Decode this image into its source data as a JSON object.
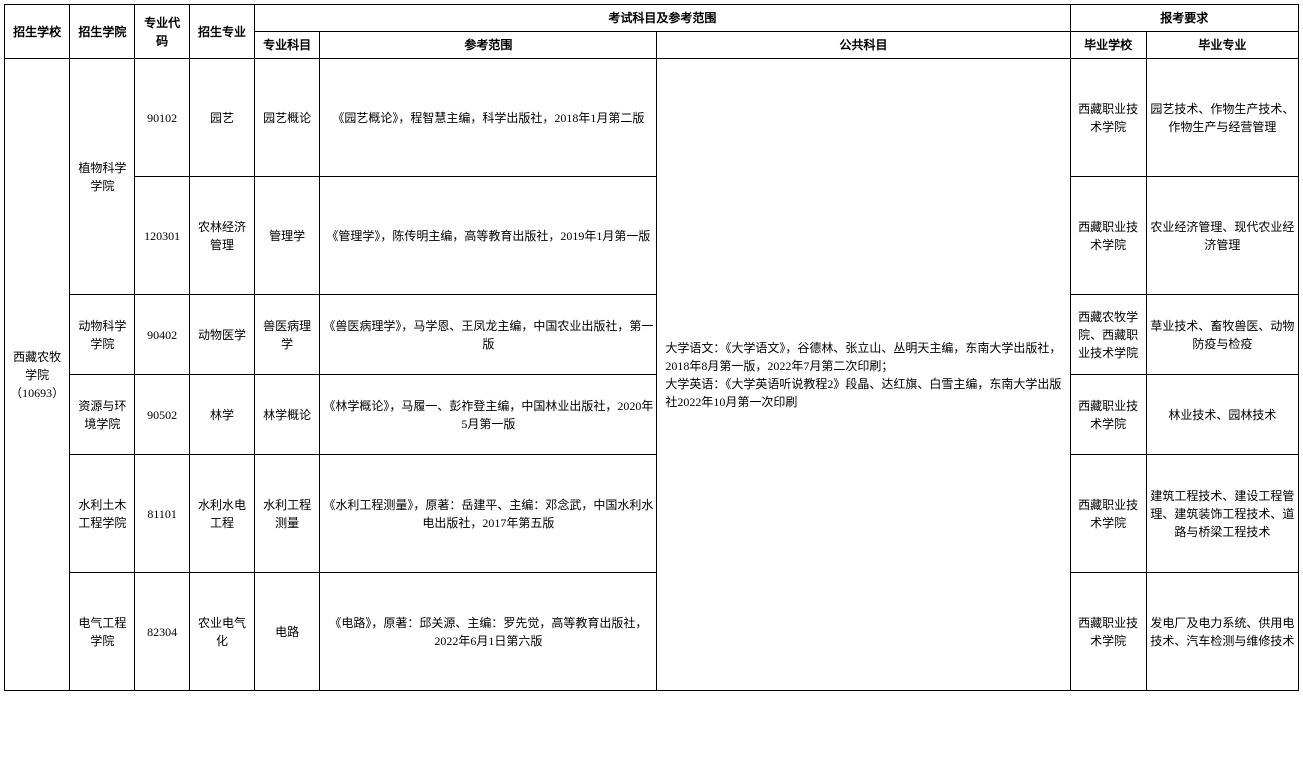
{
  "headers": {
    "school": "招生学校",
    "college": "招生学院",
    "code": "专业代码",
    "major": "招生专业",
    "exam_group": "考试科目及参考范围",
    "subject": "专业科目",
    "reference": "参考范围",
    "public": "公共科目",
    "apply_group": "报考要求",
    "grad_school": "毕业学校",
    "grad_major": "毕业专业"
  },
  "school": "西藏农牧学院（10693）",
  "public_subject": "大学语文：《大学语文》，谷德林、张立山、丛明天主编，东南大学出版社，2018年8月第一版，2022年7月第二次印刷；\n大学英语：《大学英语听说教程2》段晶、达红旗、白雪主编，东南大学出版社2022年10月第一次印刷",
  "rows": [
    {
      "college": "植物科学学院",
      "code": "90102",
      "major": "园艺",
      "subject": "园艺概论",
      "reference": "《园艺概论》，程智慧主编，科学出版社，2018年1月第二版",
      "grad_school": "西藏职业技术学院",
      "grad_major": "园艺技术、作物生产技术、作物生产与经营管理"
    },
    {
      "code": "120301",
      "major": "农林经济管理",
      "subject": "管理学",
      "reference": "《管理学》，陈传明主编，高等教育出版社，2019年1月第一版",
      "grad_school": "西藏职业技术学院",
      "grad_major": "农业经济管理、现代农业经济管理"
    },
    {
      "college": "动物科学学院",
      "code": "90402",
      "major": "动物医学",
      "subject": "兽医病理学",
      "reference": "《兽医病理学》，马学恩、王凤龙主编，中国农业出版社，第一版",
      "grad_school": "西藏农牧学院、西藏职业技术学院",
      "grad_major": "草业技术、畜牧兽医、动物防疫与检疫"
    },
    {
      "college": "资源与环境学院",
      "code": "90502",
      "major": "林学",
      "subject": "林学概论",
      "reference": "《林学概论》，马履一、彭祚登主编，中国林业出版社，2020年5月第一版",
      "grad_school": "西藏职业技术学院",
      "grad_major": "林业技术、园林技术"
    },
    {
      "college": "水利土木工程学院",
      "code": "81101",
      "major": "水利水电工程",
      "subject": "水利工程测量",
      "reference": "《水利工程测量》，原著：岳建平、主编：邓念武，中国水利水电出版社，2017年第五版",
      "grad_school": "西藏职业技术学院",
      "grad_major": "建筑工程技术、建设工程管理、建筑装饰工程技术、道路与桥梁工程技术"
    },
    {
      "college": "电气工程学院",
      "code": "82304",
      "major": "农业电气化",
      "subject": "电路",
      "reference": "《电路》，原著：邱关源、主编：罗先觉，高等教育出版社，2022年6月1日第六版",
      "grad_school": "西藏职业技术学院",
      "grad_major": "发电厂及电力系统、供用电技术、汽车检测与维修技术"
    }
  ]
}
